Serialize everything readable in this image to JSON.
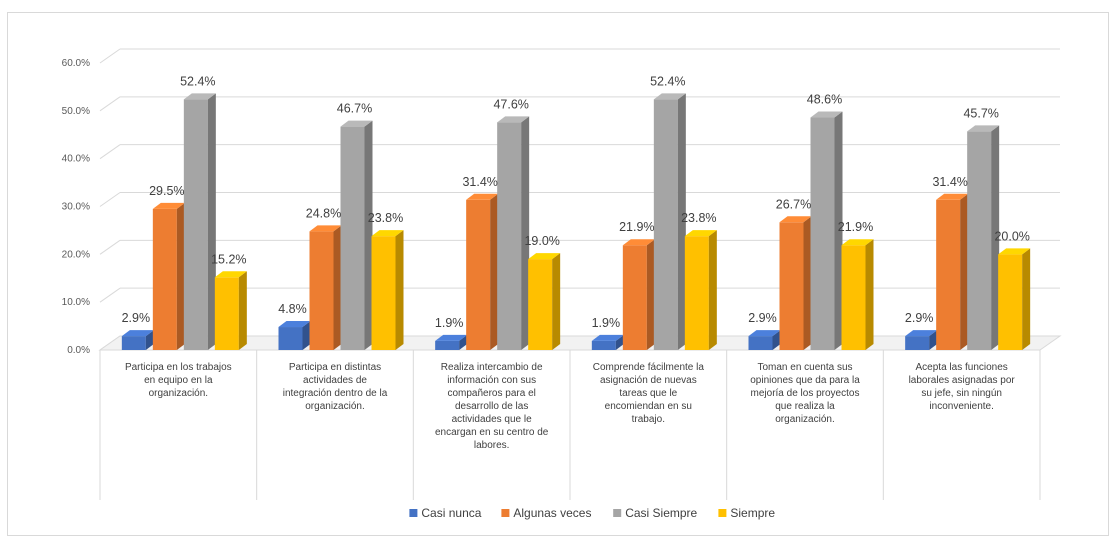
{
  "chart_data": {
    "type": "bar",
    "title": "",
    "xlabel": "",
    "ylabel": "",
    "ylim": [
      0,
      60
    ],
    "y_ticks": [
      "0.0%",
      "10.0%",
      "20.0%",
      "30.0%",
      "40.0%",
      "50.0%",
      "60.0%"
    ],
    "grid": true,
    "three_d": true,
    "legend_position": "bottom",
    "categories": [
      [
        "Participa en los trabajos",
        "en equipo en la",
        "organización."
      ],
      [
        "Participa en distintas",
        "actividades de",
        "integración dentro de la",
        "organización."
      ],
      [
        "Realiza intercambio de",
        "información con sus",
        "compañeros para el",
        "desarrollo de las",
        "actividades que le",
        "encargan en su centro de",
        "labores."
      ],
      [
        "Comprende fácilmente la",
        "asignación de nuevas",
        "tareas que le",
        "encomiendan en su",
        "trabajo."
      ],
      [
        "Toman en cuenta sus",
        "opiniones que da para la",
        "mejoría de los proyectos",
        "que realiza la",
        "organización."
      ],
      [
        "Acepta las funciones",
        "laborales asignadas por",
        "su jefe, sin ningún",
        "inconveniente."
      ]
    ],
    "series": [
      {
        "name": "Casi nunca",
        "color": "#4472c4",
        "values": [
          2.9,
          4.8,
          1.9,
          1.9,
          2.9,
          2.9
        ],
        "labels": [
          "2.9%",
          "4.8%",
          "1.9%",
          "1.9%",
          "2.9%",
          "2.9%"
        ]
      },
      {
        "name": "Algunas veces",
        "color": "#ed7d31",
        "values": [
          29.5,
          24.8,
          31.4,
          21.9,
          26.7,
          31.4
        ],
        "labels": [
          "29.5%",
          "24.8%",
          "31.4%",
          "21.9%",
          "26.7%",
          "31.4%"
        ]
      },
      {
        "name": "Casi Siempre",
        "color": "#a5a5a5",
        "values": [
          52.4,
          46.7,
          47.6,
          52.4,
          48.6,
          45.7
        ],
        "labels": [
          "52.4%",
          "46.7%",
          "47.6%",
          "52.4%",
          "48.6%",
          "45.7%"
        ]
      },
      {
        "name": "Siempre",
        "color": "#ffc000",
        "values": [
          15.2,
          23.8,
          19.0,
          23.8,
          21.9,
          20.0
        ],
        "labels": [
          "15.2%",
          "23.8%",
          "19.0%",
          "23.8%",
          "21.9%",
          "20.0%"
        ]
      }
    ]
  }
}
